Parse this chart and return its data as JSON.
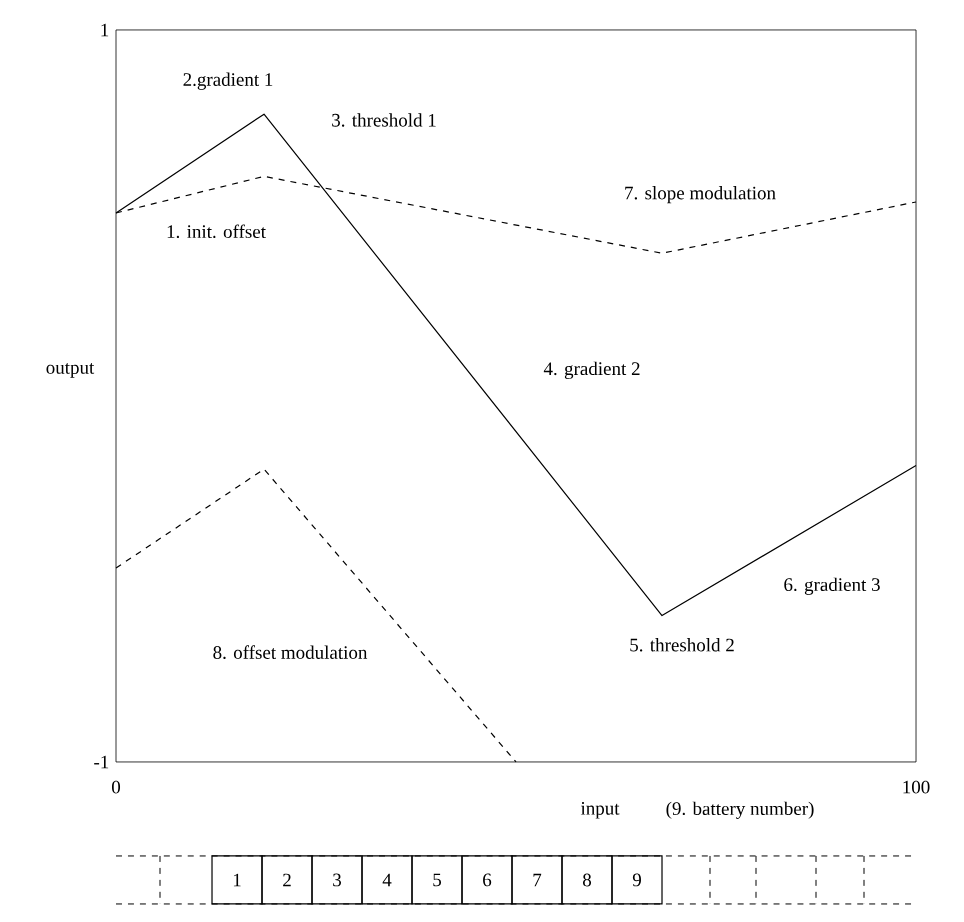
{
  "chart_data": {
    "type": "line",
    "xlabel": "input",
    "ylabel": "output",
    "xlim": [
      0,
      100
    ],
    "ylim": [
      -1,
      1
    ],
    "xticks": [
      0,
      100
    ],
    "yticks": [
      -1,
      1
    ],
    "grid": false,
    "marker": "none",
    "series": [
      {
        "color": "#000000",
        "line_style": "solid",
        "x": [
          0,
          18.5,
          68.25,
          100
        ],
        "values": [
          0.5,
          0.77,
          -0.6,
          -0.19
        ]
      },
      {
        "color": "#000000",
        "line_style": "dashed",
        "x": [
          0,
          18.5,
          68.25,
          100
        ],
        "values": [
          0.5,
          0.6,
          0.39,
          0.53
        ]
      },
      {
        "color": "#000000",
        "line_style": "dashed",
        "x": [
          0,
          18.5,
          50
        ],
        "values": [
          -0.47,
          -0.2,
          -1
        ]
      }
    ],
    "annotations": [
      "1. init. offset",
      "2.gradient 1",
      "3. threshold 1",
      "4. gradient 2",
      "5. threshold 2",
      "6. gradient 3",
      "7. slope modulation",
      "8. offset modulation",
      "(9. battery number)",
      "1",
      "2",
      "3",
      "4",
      "5",
      "6",
      "7",
      "8",
      "9"
    ]
  }
}
